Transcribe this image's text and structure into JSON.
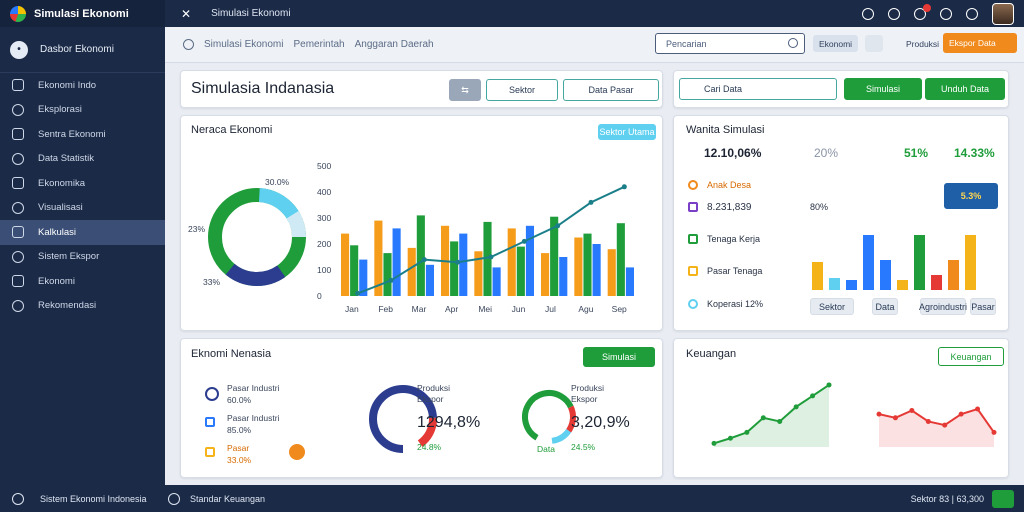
{
  "app": {
    "title": "Simulasi Ekonomi",
    "breadcrumb": "Simulasi Ekonomi"
  },
  "sidebar": {
    "header": "Dasbor Ekonomi",
    "items": [
      {
        "label": "Ekonomi Indo"
      },
      {
        "label": "Eksplorasi"
      },
      {
        "label": "Sentra Ekonomi"
      },
      {
        "label": "Data Statistik"
      },
      {
        "label": "Ekonomika"
      },
      {
        "label": "Visualisasi"
      },
      {
        "label": "Kalkulasi"
      },
      {
        "label": "Sistem Ekspor"
      },
      {
        "label": "Ekonomi"
      },
      {
        "label": "Rekomendasi"
      }
    ],
    "active_index": 6
  },
  "searchbar": {
    "tabs": [
      "Simulasi Ekonomi",
      "Pemerintah",
      "Anggaran Daerah"
    ],
    "placeholder": "Pencarian",
    "chip_a": "Ekonomi",
    "chip_c": "Produksi",
    "orange_button": "Ekspor Data"
  },
  "main_panel": {
    "title": "Simulasia Indanasia",
    "btn_toggle": "",
    "btn_search": "Sektor",
    "btn_report": "Data Pasar"
  },
  "right_toolbar": {
    "search_label": "Cari Data",
    "btn_simulate": "Simulasi",
    "btn_download": "Unduh Data"
  },
  "donut_panel": {
    "title": "Neraca Ekonomi",
    "badge": "Sektor Utama",
    "pct_top": "30.0%",
    "pct_left": "23%",
    "pct_bottom": "33%"
  },
  "chart_data": {
    "type": "bar",
    "categories": [
      "Jan",
      "Feb",
      "Mar",
      "Apr",
      "Mei",
      "Jun",
      "Jul",
      "Agu",
      "Sep"
    ],
    "series": [
      {
        "values": [
          240,
          290,
          185,
          270,
          172,
          260,
          165,
          225,
          180
        ],
        "color": "#f59c1a"
      },
      {
        "values": [
          195,
          165,
          310,
          210,
          285,
          190,
          305,
          240,
          280
        ],
        "color": "#1f9d3a"
      },
      {
        "values": [
          140,
          260,
          120,
          240,
          110,
          270,
          150,
          200,
          110
        ],
        "color": "#2979ff"
      }
    ],
    "trend": [
      10,
      60,
      140,
      130,
      150,
      210,
      270,
      360,
      420
    ],
    "ylim": [
      0,
      500
    ],
    "yticks": [
      "0",
      "100",
      "200",
      "300",
      "400",
      "500"
    ]
  },
  "stats_panel": {
    "title": "Wanita Simulasi",
    "v1": "12.10,06%",
    "v2": "20%",
    "v3": "51%",
    "v4": "14.33%",
    "row2_label": "Anak Desa",
    "row2_value": "8.231,839",
    "row2_pct": "80%",
    "badge": "5.3%",
    "l1": "Tenaga Kerja",
    "l2": "Pasar Tenaga",
    "l3": "Koperasi 12%",
    "chip1": "Sektor",
    "chip2": "Data",
    "chip3": "Agroindustri",
    "chip4": "Pasar"
  },
  "bottom_left": {
    "title": "Eknomi Nenasia",
    "btn": "Simulasi",
    "rows": [
      {
        "name": "Pasar Industri",
        "value": "60.0%"
      },
      {
        "name": "Pasar Industri",
        "value": "85.0%"
      },
      {
        "name": "Pasar",
        "value": "33.0%"
      }
    ],
    "ring1_label": "Produksi",
    "ring1_sub": "Ekspor",
    "ring1_value": "1294,8%",
    "ring1_small": "24.8%",
    "ring2_label": "Produksi",
    "ring2_sub": "Ekspor",
    "ring2_value": "3,20,9%",
    "ring2_small": "24.5%",
    "ring2_extra": "Data"
  },
  "bottom_right": {
    "title": "Keuangan",
    "btn": "Keuangan",
    "lines": {
      "a": [
        5,
        12,
        20,
        40,
        35,
        55,
        70,
        85
      ],
      "b": [
        45,
        40,
        50,
        35,
        30,
        45,
        52,
        20
      ]
    }
  },
  "footer": {
    "left": "Sistem Ekonomi Indonesia",
    "mid": "Standar Keuangan",
    "right": "Sektor 83 | 63,300"
  }
}
